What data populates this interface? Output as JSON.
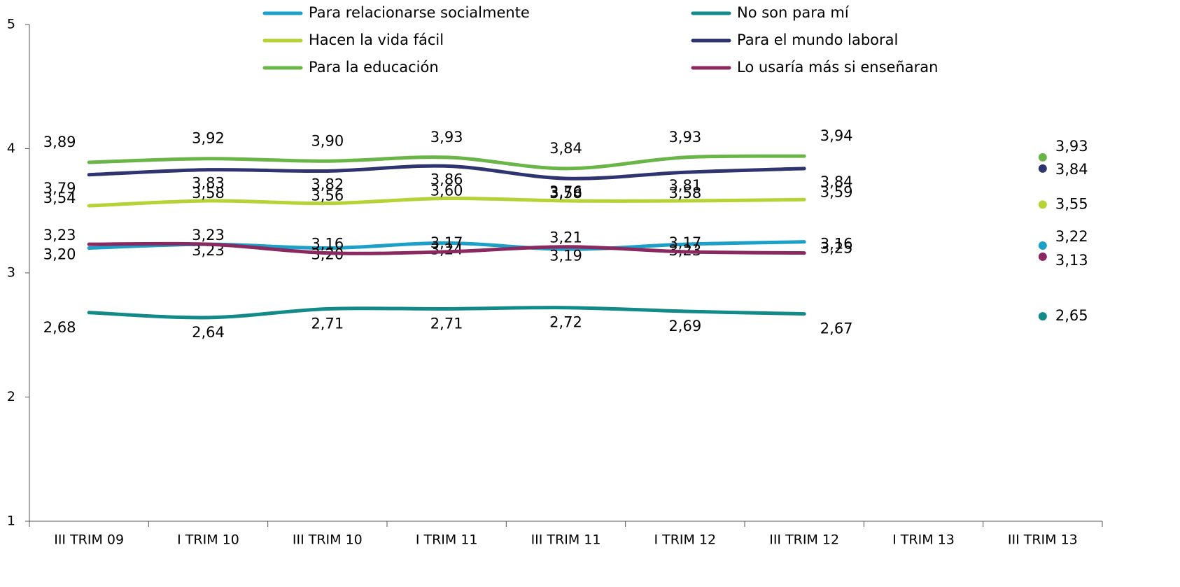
{
  "chart_data": {
    "type": "line",
    "categories": [
      "III TRIM 09",
      "I TRIM 10",
      "III TRIM 10",
      "I TRIM 11",
      "III TRIM 11",
      "I TRIM 12",
      "III TRIM 12",
      "I TRIM 13",
      "III TRIM 13"
    ],
    "ylim": [
      1,
      5
    ],
    "yticks": [
      1,
      2,
      3,
      4,
      5
    ],
    "grid": false,
    "legend": "top",
    "series": [
      {
        "name": "Para relacionarse socialmente",
        "color": "#1ca0c8",
        "values": [
          3.2,
          3.23,
          3.2,
          3.24,
          3.19,
          3.23,
          3.25,
          null,
          3.22
        ],
        "value_labels": [
          "3,20",
          "3,23",
          "3,20",
          "3,24",
          "3,19",
          "3,23",
          "3,25",
          null,
          "3,22"
        ]
      },
      {
        "name": "No son para mí",
        "color": "#138a8a",
        "values": [
          2.68,
          2.64,
          2.71,
          2.71,
          2.72,
          2.69,
          2.67,
          null,
          2.65
        ],
        "value_labels": [
          "2,68",
          "2,64",
          "2,71",
          "2,71",
          "2,72",
          "2,69",
          "2,67",
          null,
          "2,65"
        ]
      },
      {
        "name": "Hacen la vida fácil",
        "color": "#b5d334",
        "values": [
          3.54,
          3.58,
          3.56,
          3.6,
          3.58,
          3.58,
          3.59,
          null,
          3.55
        ],
        "value_labels": [
          "3,54",
          "3,58",
          "3,56",
          "3,60",
          "3,58",
          "3,58",
          "3,59",
          null,
          "3,55"
        ]
      },
      {
        "name": "Para el mundo laboral",
        "color": "#2e3470",
        "values": [
          3.79,
          3.83,
          3.82,
          3.86,
          3.76,
          3.81,
          3.84,
          null,
          3.84
        ],
        "value_labels": [
          "3,79",
          "3,83",
          "3,82",
          "3,86",
          "3,76",
          "3,81",
          "3,84",
          null,
          "3,84"
        ]
      },
      {
        "name": "Para la educación",
        "color": "#6ab547",
        "values": [
          3.89,
          3.92,
          3.9,
          3.93,
          3.84,
          3.93,
          3.94,
          null,
          3.93
        ],
        "value_labels": [
          "3,89",
          "3,92",
          "3,90",
          "3,93",
          "3,84",
          "3,93",
          "3,94",
          null,
          "3,93"
        ]
      },
      {
        "name": "Lo usaría más si enseñaran",
        "color": "#8a2860",
        "values": [
          3.23,
          3.23,
          3.16,
          3.17,
          3.21,
          3.17,
          3.16,
          null,
          3.13
        ],
        "value_labels": [
          "3,23",
          "3,23",
          "3,16",
          "3,17",
          "3,21",
          "3,17",
          "3,16",
          null,
          "3,13"
        ]
      }
    ]
  }
}
